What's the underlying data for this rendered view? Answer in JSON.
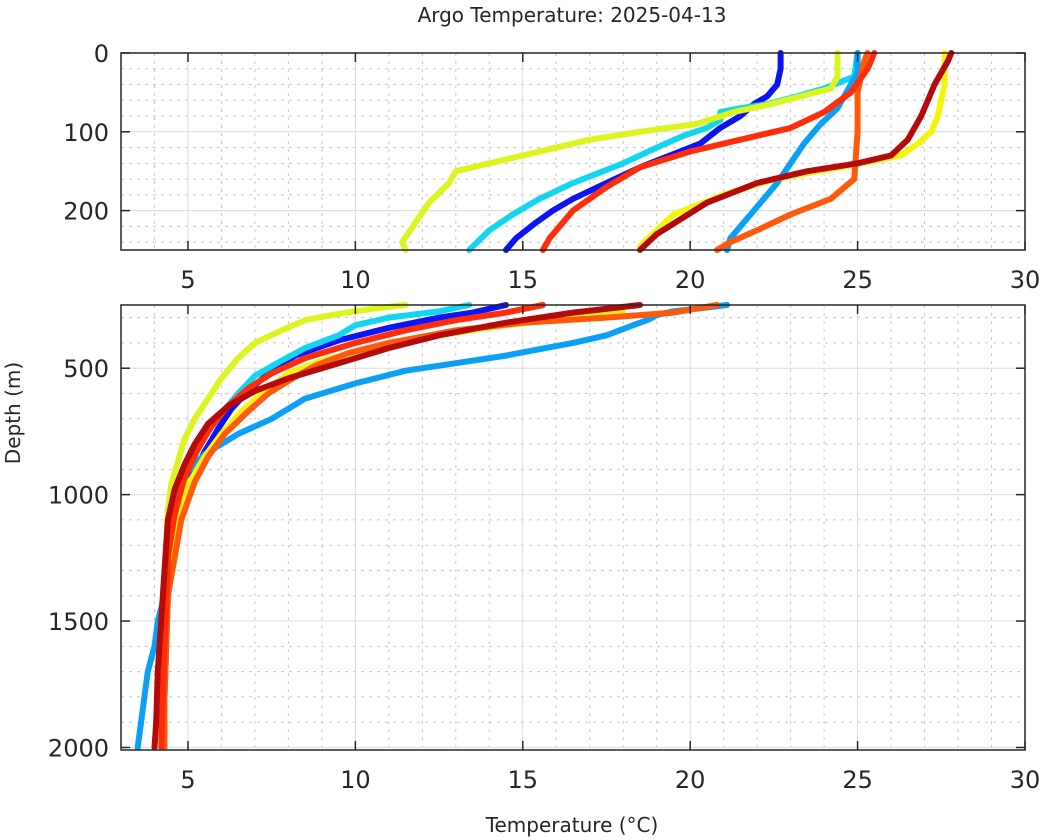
{
  "chart_data": {
    "type": "line",
    "title": "Argo Temperature: 2025-04-13",
    "xlabel": "Temperature (°C)",
    "ylabel": "Depth (m)",
    "grid": true,
    "minor_grid": true,
    "legend": "none",
    "panels": [
      {
        "name": "upper",
        "xlim": [
          3,
          30
        ],
        "ylim": [
          0,
          250
        ],
        "y_reversed": true,
        "xticks": [
          5,
          10,
          15,
          20,
          25,
          30
        ],
        "xtick_labels": [
          "5",
          "10",
          "15",
          "20",
          "25",
          "30"
        ],
        "yticks": [
          0,
          100,
          200
        ],
        "ytick_labels": [
          "0",
          "100",
          "200"
        ]
      },
      {
        "name": "lower",
        "xlim": [
          3,
          30
        ],
        "ylim": [
          250,
          2010
        ],
        "y_reversed": true,
        "xticks": [
          5,
          10,
          15,
          20,
          25,
          30
        ],
        "xtick_labels": [
          "5",
          "10",
          "15",
          "20",
          "25",
          "30"
        ],
        "yticks": [
          500,
          1000,
          1500,
          2000
        ],
        "ytick_labels": [
          "500",
          "1000",
          "1500",
          "2000"
        ]
      }
    ],
    "series": [
      {
        "name": "profile-blue",
        "color": "#0a14f5",
        "points": [
          [
            22.7,
            0
          ],
          [
            22.7,
            20
          ],
          [
            22.6,
            40
          ],
          [
            22.3,
            55
          ],
          [
            21.9,
            65
          ],
          [
            21.5,
            80
          ],
          [
            20.9,
            95
          ],
          [
            20.3,
            115
          ],
          [
            19.4,
            130
          ],
          [
            18.5,
            145
          ],
          [
            17.5,
            165
          ],
          [
            16.5,
            185
          ],
          [
            15.9,
            200
          ],
          [
            15.4,
            215
          ],
          [
            14.8,
            235
          ],
          [
            14.5,
            250
          ],
          [
            13.5,
            280
          ],
          [
            12.5,
            300
          ],
          [
            11.0,
            340
          ],
          [
            9.5,
            390
          ],
          [
            8.2,
            450
          ],
          [
            7.5,
            510
          ],
          [
            6.8,
            590
          ],
          [
            6.3,
            660
          ],
          [
            5.9,
            740
          ],
          [
            5.5,
            830
          ],
          [
            5.1,
            930
          ],
          [
            4.8,
            1060
          ],
          [
            4.6,
            1200
          ],
          [
            4.4,
            1400
          ],
          [
            4.35,
            1600
          ],
          [
            4.3,
            1800
          ],
          [
            4.3,
            2000
          ]
        ]
      },
      {
        "name": "profile-cyan",
        "color": "#12d6f0",
        "points": [
          [
            25.0,
            0
          ],
          [
            24.9,
            30
          ],
          [
            24.0,
            45
          ],
          [
            23.2,
            55
          ],
          [
            22.3,
            65
          ],
          [
            21.5,
            70
          ],
          [
            20.9,
            75
          ],
          [
            20.9,
            85
          ],
          [
            20.5,
            95
          ],
          [
            19.8,
            105
          ],
          [
            19.0,
            120
          ],
          [
            18.0,
            140
          ],
          [
            16.5,
            165
          ],
          [
            15.5,
            185
          ],
          [
            14.7,
            205
          ],
          [
            14.0,
            225
          ],
          [
            13.4,
            250
          ],
          [
            12.5,
            275
          ],
          [
            11.0,
            300
          ],
          [
            10.0,
            330
          ],
          [
            9.5,
            370
          ],
          [
            8.5,
            420
          ],
          [
            7.8,
            470
          ],
          [
            7.0,
            530
          ],
          [
            6.5,
            600
          ],
          [
            6.0,
            680
          ],
          [
            5.5,
            770
          ],
          [
            5.1,
            860
          ],
          [
            4.8,
            970
          ],
          [
            4.6,
            1100
          ],
          [
            4.4,
            1250
          ],
          [
            4.35,
            1400
          ],
          [
            4.3,
            1600
          ],
          [
            4.3,
            1800
          ],
          [
            4.25,
            2000
          ]
        ]
      },
      {
        "name": "profile-lightblue",
        "color": "#0aa0f5",
        "points": [
          [
            25.0,
            0
          ],
          [
            25.0,
            25
          ],
          [
            24.8,
            40
          ],
          [
            24.6,
            55
          ],
          [
            24.4,
            70
          ],
          [
            23.9,
            90
          ],
          [
            23.4,
            115
          ],
          [
            23.0,
            140
          ],
          [
            22.6,
            165
          ],
          [
            22.1,
            190
          ],
          [
            21.6,
            215
          ],
          [
            21.2,
            235
          ],
          [
            21.1,
            250
          ],
          [
            20.5,
            260
          ],
          [
            19.5,
            275
          ],
          [
            19.0,
            290
          ],
          [
            18.8,
            305
          ],
          [
            18.3,
            330
          ],
          [
            17.5,
            370
          ],
          [
            16.5,
            400
          ],
          [
            15.5,
            425
          ],
          [
            14.5,
            450
          ],
          [
            13.0,
            480
          ],
          [
            11.5,
            510
          ],
          [
            10.0,
            560
          ],
          [
            8.5,
            620
          ],
          [
            7.5,
            700
          ],
          [
            6.5,
            760
          ],
          [
            5.5,
            840
          ],
          [
            4.9,
            920
          ],
          [
            4.7,
            1000
          ],
          [
            4.5,
            1100
          ],
          [
            4.4,
            1250
          ],
          [
            4.3,
            1400
          ],
          [
            4.1,
            1500
          ],
          [
            4.0,
            1600
          ],
          [
            3.8,
            1700
          ],
          [
            3.7,
            1800
          ],
          [
            3.6,
            1900
          ],
          [
            3.5,
            2000
          ]
        ]
      },
      {
        "name": "profile-yellowgreen",
        "color": "#dcf51e",
        "points": [
          [
            24.4,
            0
          ],
          [
            24.4,
            30
          ],
          [
            24.2,
            45
          ],
          [
            23.3,
            55
          ],
          [
            22.4,
            65
          ],
          [
            21.3,
            75
          ],
          [
            20.2,
            90
          ],
          [
            18.5,
            100
          ],
          [
            17.0,
            110
          ],
          [
            16.0,
            120
          ],
          [
            14.5,
            135
          ],
          [
            13.0,
            150
          ],
          [
            12.8,
            165
          ],
          [
            12.2,
            190
          ],
          [
            11.8,
            215
          ],
          [
            11.4,
            240
          ],
          [
            11.5,
            250
          ],
          [
            10.5,
            265
          ],
          [
            9.5,
            285
          ],
          [
            8.5,
            310
          ],
          [
            7.8,
            350
          ],
          [
            7.0,
            400
          ],
          [
            6.5,
            460
          ],
          [
            6.0,
            540
          ],
          [
            5.6,
            620
          ],
          [
            5.2,
            700
          ],
          [
            4.9,
            780
          ],
          [
            4.7,
            870
          ],
          [
            4.5,
            960
          ],
          [
            4.4,
            1060
          ],
          [
            4.35,
            1200
          ],
          [
            4.3,
            1400
          ],
          [
            4.3,
            1600
          ],
          [
            4.3,
            1800
          ],
          [
            4.3,
            2000
          ]
        ]
      },
      {
        "name": "profile-yellow",
        "color": "#f5f50a",
        "points": [
          [
            27.6,
            0
          ],
          [
            27.6,
            40
          ],
          [
            27.4,
            80
          ],
          [
            27.2,
            100
          ],
          [
            26.8,
            115
          ],
          [
            26.3,
            130
          ],
          [
            24.5,
            145
          ],
          [
            22.5,
            160
          ],
          [
            21.0,
            180
          ],
          [
            19.5,
            205
          ],
          [
            18.5,
            245
          ],
          [
            18.0,
            280
          ],
          [
            16.5,
            300
          ],
          [
            14.5,
            330
          ],
          [
            12.0,
            380
          ],
          [
            10.5,
            420
          ],
          [
            9.0,
            470
          ],
          [
            8.0,
            520
          ],
          [
            7.2,
            600
          ],
          [
            6.6,
            670
          ],
          [
            6.0,
            760
          ],
          [
            5.5,
            850
          ],
          [
            5.0,
            960
          ],
          [
            4.7,
            1100
          ],
          [
            4.5,
            1250
          ],
          [
            4.4,
            1400
          ],
          [
            4.35,
            1600
          ],
          [
            4.3,
            1800
          ],
          [
            4.3,
            2000
          ]
        ]
      },
      {
        "name": "profile-orange",
        "color": "#ff5a0a",
        "points": [
          [
            25.3,
            0
          ],
          [
            25.2,
            10
          ],
          [
            25.0,
            50
          ],
          [
            25.0,
            100
          ],
          [
            24.9,
            160
          ],
          [
            24.2,
            185
          ],
          [
            23.0,
            205
          ],
          [
            22.0,
            225
          ],
          [
            21.2,
            240
          ],
          [
            20.8,
            250
          ],
          [
            19.5,
            280
          ],
          [
            17.5,
            300
          ],
          [
            15.0,
            320
          ],
          [
            13.0,
            350
          ],
          [
            11.0,
            400
          ],
          [
            9.8,
            440
          ],
          [
            8.8,
            490
          ],
          [
            8.0,
            550
          ],
          [
            7.4,
            600
          ],
          [
            6.8,
            670
          ],
          [
            6.1,
            760
          ],
          [
            5.6,
            850
          ],
          [
            5.2,
            950
          ],
          [
            4.8,
            1100
          ],
          [
            4.6,
            1250
          ],
          [
            4.4,
            1400
          ],
          [
            4.35,
            1600
          ],
          [
            4.3,
            1800
          ],
          [
            4.3,
            2000
          ]
        ]
      },
      {
        "name": "profile-redorange",
        "color": "#ff2d0a",
        "points": [
          [
            25.5,
            0
          ],
          [
            25.3,
            20
          ],
          [
            24.8,
            50
          ],
          [
            24.0,
            75
          ],
          [
            23.0,
            95
          ],
          [
            21.5,
            110
          ],
          [
            20.0,
            125
          ],
          [
            18.5,
            145
          ],
          [
            17.5,
            170
          ],
          [
            16.5,
            200
          ],
          [
            15.8,
            235
          ],
          [
            15.6,
            250
          ],
          [
            14.5,
            280
          ],
          [
            13.0,
            310
          ],
          [
            11.5,
            350
          ],
          [
            10.0,
            400
          ],
          [
            8.5,
            460
          ],
          [
            7.5,
            520
          ],
          [
            6.8,
            580
          ],
          [
            6.2,
            650
          ],
          [
            5.7,
            730
          ],
          [
            5.3,
            820
          ],
          [
            4.9,
            930
          ],
          [
            4.6,
            1080
          ],
          [
            4.4,
            1250
          ],
          [
            4.35,
            1450
          ],
          [
            4.3,
            1600
          ],
          [
            4.25,
            1800
          ],
          [
            4.2,
            2000
          ]
        ]
      },
      {
        "name": "profile-darkred",
        "color": "#b40a0a",
        "points": [
          [
            27.8,
            0
          ],
          [
            27.7,
            10
          ],
          [
            27.3,
            40
          ],
          [
            26.9,
            80
          ],
          [
            26.5,
            110
          ],
          [
            26.0,
            130
          ],
          [
            25.0,
            140
          ],
          [
            23.5,
            150
          ],
          [
            22.0,
            165
          ],
          [
            20.5,
            190
          ],
          [
            19.0,
            230
          ],
          [
            18.5,
            250
          ],
          [
            16.5,
            280
          ],
          [
            14.5,
            320
          ],
          [
            12.5,
            370
          ],
          [
            11.0,
            420
          ],
          [
            9.5,
            480
          ],
          [
            8.0,
            540
          ],
          [
            7.0,
            590
          ],
          [
            6.2,
            650
          ],
          [
            5.6,
            720
          ],
          [
            5.2,
            800
          ],
          [
            4.9,
            880
          ],
          [
            4.6,
            980
          ],
          [
            4.4,
            1100
          ],
          [
            4.3,
            1300
          ],
          [
            4.2,
            1500
          ],
          [
            4.1,
            1700
          ],
          [
            4.05,
            1900
          ],
          [
            4.0,
            2000
          ]
        ]
      }
    ]
  }
}
